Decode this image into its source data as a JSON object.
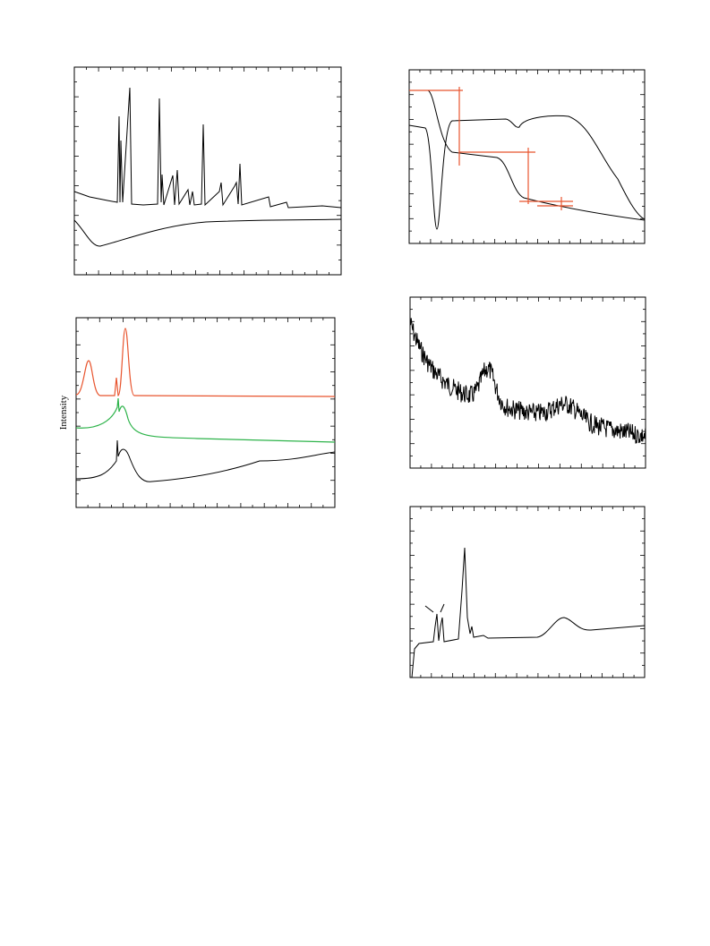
{
  "figure": {
    "y_label": "Intensity"
  }
}
